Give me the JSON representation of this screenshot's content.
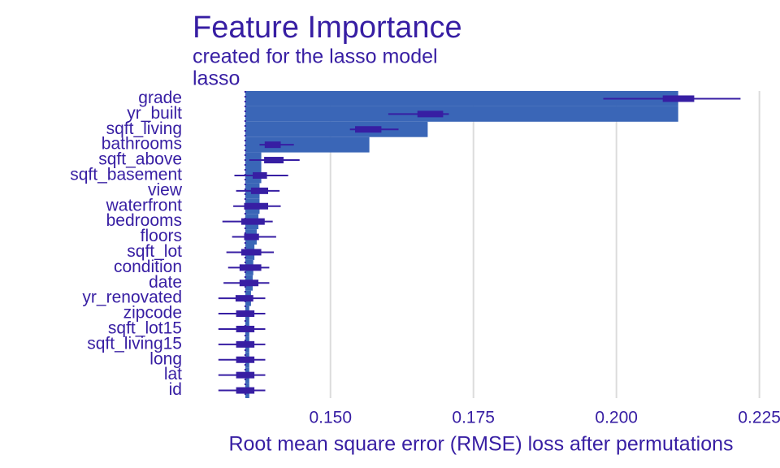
{
  "chart_data": {
    "type": "bar",
    "title": "Feature Importance",
    "subtitle": "created for the lasso model",
    "facet": "lasso",
    "x_label": "Root mean square error (RMSE) loss after permutations",
    "categories": [
      "grade",
      "yr_built",
      "sqft_living",
      "bathrooms",
      "sqft_above",
      "sqft_basement",
      "view",
      "waterfront",
      "bedrooms",
      "floors",
      "sqft_lot",
      "condition",
      "date",
      "yr_renovated",
      "zipcode",
      "sqft_lot15",
      "sqft_living15",
      "long",
      "lat",
      "id"
    ],
    "baseline": 0.1351,
    "values": [
      0.2108,
      0.2108,
      0.167,
      0.1568,
      0.1379,
      0.1379,
      0.1376,
      0.1376,
      0.1374,
      0.1371,
      0.1367,
      0.1365,
      0.1364,
      0.1361,
      0.1358,
      0.1358,
      0.1358,
      0.1358,
      0.1358,
      0.1358
    ],
    "boxes": [
      {
        "min": 0.1977,
        "q1": 0.2081,
        "q3": 0.2136,
        "max": 0.2217
      },
      {
        "min": 0.1601,
        "q1": 0.1652,
        "q3": 0.1697,
        "max": 0.1707
      },
      {
        "min": 0.1534,
        "q1": 0.1543,
        "q3": 0.1589,
        "max": 0.1619
      },
      {
        "min": 0.1376,
        "q1": 0.1385,
        "q3": 0.1413,
        "max": 0.1436
      },
      {
        "min": 0.1358,
        "q1": 0.1384,
        "q3": 0.1418,
        "max": 0.1446
      },
      {
        "min": 0.1332,
        "q1": 0.1364,
        "q3": 0.1389,
        "max": 0.1426
      },
      {
        "min": 0.1335,
        "q1": 0.1361,
        "q3": 0.1391,
        "max": 0.1411
      },
      {
        "min": 0.133,
        "q1": 0.1349,
        "q3": 0.1391,
        "max": 0.1413
      },
      {
        "min": 0.1311,
        "q1": 0.1344,
        "q3": 0.1385,
        "max": 0.1399
      },
      {
        "min": 0.1328,
        "q1": 0.1349,
        "q3": 0.1375,
        "max": 0.1405
      },
      {
        "min": 0.1318,
        "q1": 0.1344,
        "q3": 0.1379,
        "max": 0.1401
      },
      {
        "min": 0.1321,
        "q1": 0.1341,
        "q3": 0.1379,
        "max": 0.1393
      },
      {
        "min": 0.1313,
        "q1": 0.1341,
        "q3": 0.1374,
        "max": 0.1393
      },
      {
        "min": 0.1304,
        "q1": 0.1334,
        "q3": 0.1365,
        "max": 0.1386
      },
      {
        "min": 0.1304,
        "q1": 0.1335,
        "q3": 0.1367,
        "max": 0.1386
      },
      {
        "min": 0.1304,
        "q1": 0.1335,
        "q3": 0.1367,
        "max": 0.1386
      },
      {
        "min": 0.1304,
        "q1": 0.1335,
        "q3": 0.1367,
        "max": 0.1386
      },
      {
        "min": 0.1304,
        "q1": 0.1335,
        "q3": 0.1367,
        "max": 0.1386
      },
      {
        "min": 0.1304,
        "q1": 0.1335,
        "q3": 0.1367,
        "max": 0.1386
      },
      {
        "min": 0.1304,
        "q1": 0.1335,
        "q3": 0.1367,
        "max": 0.1386
      }
    ],
    "color": "#3a66b7",
    "box_color": "#371ea3",
    "xlim": [
      0.1256,
      0.2286
    ],
    "xticks": [
      {
        "value": 0.15,
        "label": "0.150"
      },
      {
        "value": 0.175,
        "label": "0.175"
      },
      {
        "value": 0.2,
        "label": "0.200"
      },
      {
        "value": 0.225,
        "label": "0.225"
      }
    ],
    "grid": true
  }
}
